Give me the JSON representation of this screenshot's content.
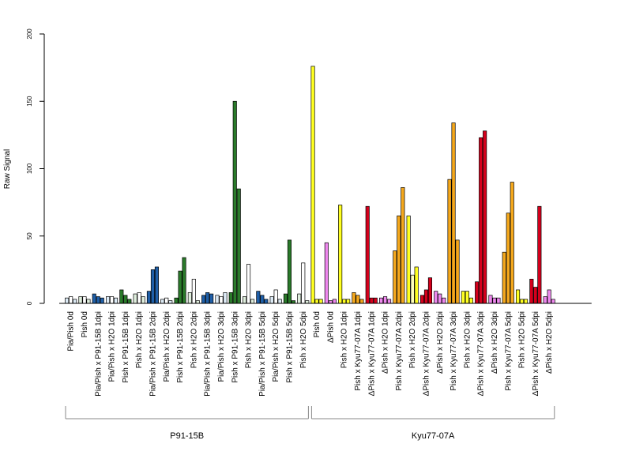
{
  "chart_data": {
    "type": "bar",
    "ylabel": "Raw Signal",
    "ylim": [
      0,
      200
    ],
    "yticks": [
      0,
      50,
      100,
      150,
      200
    ],
    "grid": false,
    "legend": "none",
    "palette": {
      "white": "#ffffff",
      "lightblue": "#dceaf5",
      "blue": "#1f5fa8",
      "lightgreen": "#dfeedd",
      "green": "#2a7a2a",
      "yellow": "#ffff22",
      "lightyellow": "#ffffbb",
      "violet": "#ee88ee",
      "orange": "#f5a81c",
      "red": "#d4001c"
    },
    "categories": [
      {
        "label": "Pia/Pish 0d",
        "values": [
          4,
          5,
          3
        ],
        "colors": [
          "lightblue",
          "white",
          "lightblue"
        ]
      },
      {
        "label": "Pish 0d",
        "values": [
          5,
          5,
          3
        ],
        "colors": [
          "lightgreen",
          "white",
          "lightgreen"
        ]
      },
      {
        "label": "Pia/Pish x P91-15B 1dpi",
        "values": [
          7,
          5,
          4
        ],
        "colors": [
          "blue",
          "blue",
          "blue"
        ]
      },
      {
        "label": "Pia/Pish x H2O 1dpi",
        "values": [
          5,
          5,
          4
        ],
        "colors": [
          "lightblue",
          "white",
          "lightblue"
        ]
      },
      {
        "label": "Pish x P91-15B 1dpi",
        "values": [
          10,
          6,
          3
        ],
        "colors": [
          "green",
          "green",
          "green"
        ]
      },
      {
        "label": "Pish x H2O 1dpi",
        "values": [
          7,
          8,
          5
        ],
        "colors": [
          "lightgreen",
          "white",
          "lightgreen"
        ]
      },
      {
        "label": "Pia/Pish x P91-15B 2dpi",
        "values": [
          9,
          25,
          27
        ],
        "colors": [
          "blue",
          "blue",
          "blue"
        ]
      },
      {
        "label": "Pia/Pish x H2O 2dpi",
        "values": [
          3,
          4,
          2
        ],
        "colors": [
          "lightblue",
          "white",
          "lightblue"
        ]
      },
      {
        "label": "Pish x P91-15B 2dpi",
        "values": [
          4,
          24,
          34
        ],
        "colors": [
          "green",
          "green",
          "green"
        ]
      },
      {
        "label": "Pish x H2O 2dpi",
        "values": [
          8,
          18,
          2
        ],
        "colors": [
          "lightgreen",
          "white",
          "lightgreen"
        ]
      },
      {
        "label": "Pia/Pish x P91-15B 3dpi",
        "values": [
          6,
          8,
          7
        ],
        "colors": [
          "blue",
          "blue",
          "blue"
        ]
      },
      {
        "label": "Pia/Pish x H2O 3dpi",
        "values": [
          6,
          5,
          8
        ],
        "colors": [
          "lightblue",
          "white",
          "lightblue"
        ]
      },
      {
        "label": "Pish x P91-15B 3dpi",
        "values": [
          8,
          150,
          85
        ],
        "colors": [
          "green",
          "green",
          "green"
        ]
      },
      {
        "label": "Pish x H2O 3dpi",
        "values": [
          5,
          29,
          3
        ],
        "colors": [
          "lightgreen",
          "white",
          "lightgreen"
        ]
      },
      {
        "label": "Pia/Pish x P91-15B 5dpi",
        "values": [
          9,
          6,
          3
        ],
        "colors": [
          "blue",
          "blue",
          "blue"
        ]
      },
      {
        "label": "Pia/Pish x H2O 5dpi",
        "values": [
          5,
          10,
          3
        ],
        "colors": [
          "lightblue",
          "white",
          "lightblue"
        ]
      },
      {
        "label": "Pish x P91-15B 5dpi",
        "values": [
          7,
          47,
          2
        ],
        "colors": [
          "green",
          "green",
          "green"
        ]
      },
      {
        "label": "Pish x H2O 5dpi",
        "values": [
          7,
          30,
          2
        ],
        "colors": [
          "lightgreen",
          "white",
          "lightgreen"
        ]
      },
      {
        "label": "Pish 0d",
        "values": [
          176,
          3,
          3
        ],
        "colors": [
          "yellow",
          "yellow",
          "yellow"
        ]
      },
      {
        "label": "ΔPish 0d",
        "values": [
          45,
          2,
          3
        ],
        "colors": [
          "violet",
          "violet",
          "violet"
        ]
      },
      {
        "label": "Pish x H2O 1dpi",
        "values": [
          73,
          3,
          3
        ],
        "colors": [
          "yellow",
          "yellow",
          "yellow"
        ]
      },
      {
        "label": "Pish x Kyu77-07A 1dpi",
        "values": [
          8,
          6,
          3
        ],
        "colors": [
          "orange",
          "orange",
          "orange"
        ]
      },
      {
        "label": "ΔPish x Kyu77-07A 1dpi",
        "values": [
          72,
          4,
          4
        ],
        "colors": [
          "red",
          "red",
          "red"
        ]
      },
      {
        "label": "ΔPish x H2O 1dpi",
        "values": [
          4,
          5,
          3
        ],
        "colors": [
          "violet",
          "violet",
          "violet"
        ]
      },
      {
        "label": "Pish x Kyu77-07A 2dpi",
        "values": [
          39,
          65,
          86
        ],
        "colors": [
          "orange",
          "orange",
          "orange"
        ]
      },
      {
        "label": "Pish x H2O 2dpi",
        "values": [
          65,
          21,
          27
        ],
        "colors": [
          "yellow",
          "lightyellow",
          "yellow"
        ]
      },
      {
        "label": "ΔPish x Kyu77-07A 2dpi",
        "values": [
          6,
          10,
          19
        ],
        "colors": [
          "red",
          "red",
          "red"
        ]
      },
      {
        "label": "ΔPish x H2O 2dpi",
        "values": [
          9,
          7,
          4
        ],
        "colors": [
          "violet",
          "violet",
          "violet"
        ]
      },
      {
        "label": "Pish x Kyu77-07A 3dpi",
        "values": [
          92,
          134,
          47
        ],
        "colors": [
          "orange",
          "orange",
          "orange"
        ]
      },
      {
        "label": "Pish x H2O 3dpi",
        "values": [
          9,
          9,
          4
        ],
        "colors": [
          "yellow",
          "yellow",
          "yellow"
        ]
      },
      {
        "label": "ΔPish x Kyu77-07A 3dpi",
        "values": [
          16,
          123,
          128
        ],
        "colors": [
          "red",
          "red",
          "red"
        ]
      },
      {
        "label": "ΔPish x H2O 3dpi",
        "values": [
          6,
          4,
          4
        ],
        "colors": [
          "violet",
          "violet",
          "violet"
        ]
      },
      {
        "label": "Pish x Kyu77-07A 5dpi",
        "values": [
          38,
          67,
          90
        ],
        "colors": [
          "orange",
          "orange",
          "orange"
        ]
      },
      {
        "label": "Pish x H2O 5dpi",
        "values": [
          10,
          3,
          3
        ],
        "colors": [
          "yellow",
          "yellow",
          "yellow"
        ]
      },
      {
        "label": "ΔPish x Kyu77-07A 5dpi",
        "values": [
          18,
          12,
          72
        ],
        "colors": [
          "red",
          "red",
          "red"
        ]
      },
      {
        "label": "ΔPish x H2O 5dpi",
        "values": [
          5,
          10,
          3
        ],
        "colors": [
          "violet",
          "violet",
          "violet"
        ]
      }
    ],
    "groups": [
      {
        "label": "P91-15B",
        "from": 0,
        "to": 17
      },
      {
        "label": "Kyu77-07A",
        "from": 18,
        "to": 35
      }
    ]
  }
}
